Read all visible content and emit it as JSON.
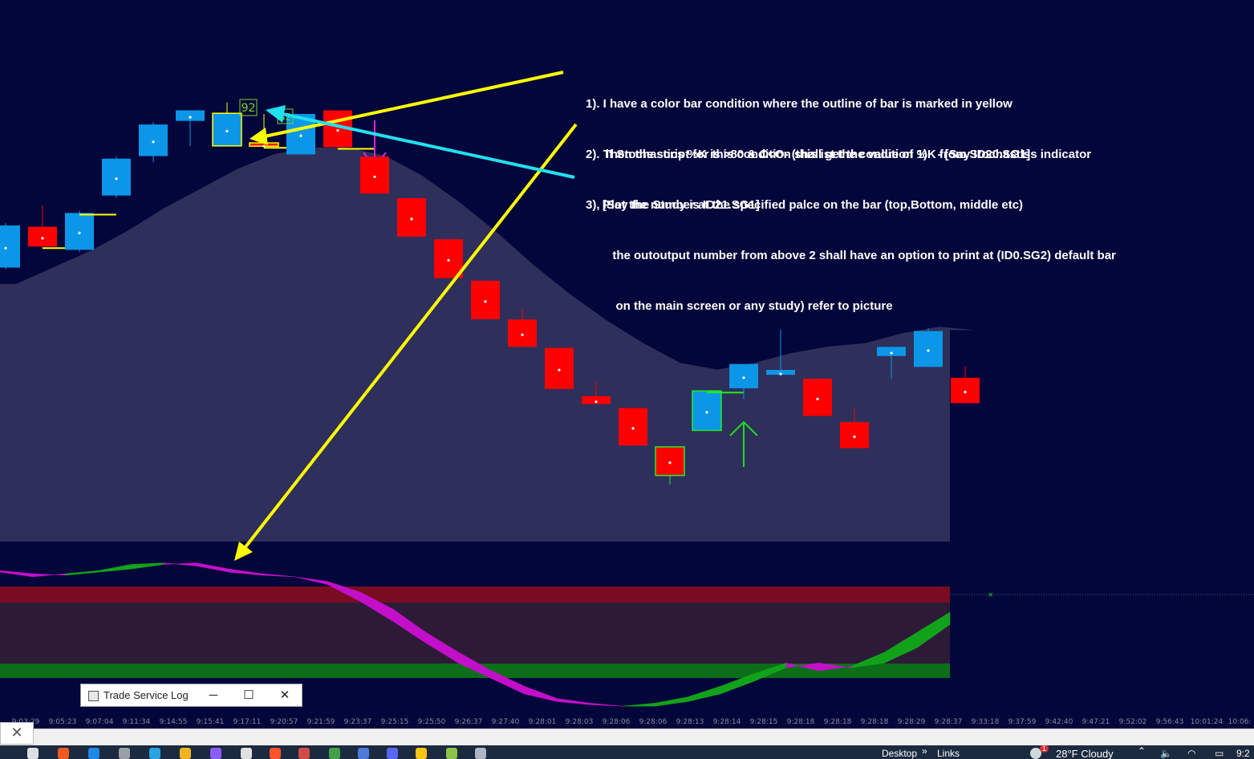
{
  "annotations": [
    {
      "lines": [
        "1). I have a color bar condition where the outline of bar is marked in yellow",
        "      if Stochastics %K is >80 & C<O- (this ist the condition 1)   - [Say ID20.SG1]"
      ]
    },
    {
      "lines": [
        "2). Then the script for this condition shall get the value of %K from Stochastiss indicator",
        "     [Say the Study is ID21.SG1]"
      ]
    },
    {
      "lines": [
        "3), Plot the number at the specified palce on the bar (top,Bottom, middle etc)",
        "        the outoutput number from above 2 shall have an option to print at (ID0.SG2) default bar",
        "         on the main screen or any study) refer to picture"
      ]
    }
  ],
  "chart": {
    "label_92": "92",
    "label_s2": "S2",
    "colors": {
      "up": "#0b96e8",
      "down": "#ff0000",
      "highlight": "#ffff00",
      "green_outline": "#22ee22",
      "area": "#2e2f5a",
      "background": "#03063a"
    },
    "candles": [
      {
        "type": "up",
        "o": 65.0,
        "c": 77.8,
        "h": 78.5,
        "l": 64.5
      },
      {
        "type": "down",
        "o": 77.4,
        "c": 71.4,
        "h": 83.9,
        "l": 70.7,
        "marker": true
      },
      {
        "type": "up",
        "o": 70.4,
        "c": 81.6,
        "h": 82.3,
        "l": 69.7,
        "marker": true
      },
      {
        "type": "up",
        "o": 86.9,
        "c": 98.1,
        "h": 98.8,
        "l": 86.2
      },
      {
        "type": "up",
        "o": 98.9,
        "c": 108.5,
        "h": 109.2,
        "l": 97.0
      },
      {
        "type": "up",
        "o": 109.6,
        "c": 112.8,
        "h": 112.8,
        "l": 101.9
      },
      {
        "type": "up",
        "o": 102.0,
        "c": 111.9,
        "h": 115.2,
        "l": 101.9,
        "outline": "yellow"
      },
      {
        "type": "down",
        "o": 102.9,
        "c": 101.9,
        "h": 111.7,
        "l": 101.5,
        "outline": "yellow",
        "marker": true
      },
      {
        "type": "up",
        "o": 99.4,
        "c": 111.7,
        "h": 111.7,
        "l": 99.4,
        "label": "S2"
      },
      {
        "type": "down",
        "o": 112.8,
        "c": 101.6,
        "h": 112.8,
        "l": 101.4,
        "marker": true,
        "arrow": "down"
      },
      {
        "type": "down",
        "o": 98.7,
        "c": 87.5,
        "h": 98.7,
        "l": 87.5
      },
      {
        "type": "down",
        "o": 86.1,
        "c": 74.4,
        "h": 86.1,
        "l": 74.4
      },
      {
        "type": "down",
        "o": 73.6,
        "c": 61.8,
        "h": 73.6,
        "l": 61.8
      },
      {
        "type": "down",
        "o": 61.0,
        "c": 49.3,
        "h": 61.0,
        "l": 49.3
      },
      {
        "type": "down",
        "o": 49.2,
        "c": 40.9,
        "h": 52.4,
        "l": 40.9
      },
      {
        "type": "down",
        "o": 40.6,
        "c": 28.1,
        "h": 40.6,
        "l": 28.1
      },
      {
        "type": "down",
        "o": 25.9,
        "c": 23.5,
        "h": 30.2,
        "l": 23.5
      },
      {
        "type": "down",
        "o": 22.3,
        "c": 10.9,
        "h": 22.3,
        "l": 10.9
      },
      {
        "type": "down",
        "o": 10.5,
        "c": 1.8,
        "h": 10.5,
        "l": -0.9,
        "outline": "green"
      },
      {
        "type": "up",
        "o": 15.5,
        "c": 27.5,
        "h": 27.5,
        "l": 15.5,
        "outline": "green",
        "marker": true,
        "arrow": "up"
      },
      {
        "type": "up",
        "o": 28.3,
        "c": 35.7,
        "h": 35.7,
        "l": 25.1
      },
      {
        "type": "up",
        "o": 32.4,
        "c": 33.9,
        "h": 46.1,
        "l": 32.4
      },
      {
        "type": "down",
        "o": 31.2,
        "c": 19.9,
        "h": 31.2,
        "l": 19.9
      },
      {
        "type": "down",
        "o": 18.0,
        "c": 10.1,
        "h": 22.3,
        "l": 10.1
      },
      {
        "type": "up",
        "o": 38.1,
        "c": 40.9,
        "h": 40.9,
        "l": 31.2
      },
      {
        "type": "up",
        "o": 34.8,
        "c": 45.7,
        "h": 46.6,
        "l": 34.8
      },
      {
        "type": "down",
        "o": 31.5,
        "c": 23.8,
        "h": 35.1,
        "l": 23.8
      }
    ],
    "area": [
      60,
      65,
      70,
      76,
      83,
      89,
      95,
      99.5,
      101.5,
      101.5,
      99,
      93,
      85,
      76,
      66,
      57,
      49,
      42,
      36,
      34,
      36,
      39,
      41,
      42,
      45,
      47,
      46
    ],
    "stoch_k": [
      89,
      86,
      88,
      90,
      94,
      95,
      93,
      89,
      87,
      86,
      81,
      70,
      57,
      43,
      30,
      20,
      10,
      5,
      3,
      2,
      4,
      8,
      15,
      23,
      30,
      25,
      28,
      37,
      50,
      63
    ],
    "stoch_d": [
      90,
      88,
      87,
      89,
      91,
      94,
      95,
      91,
      88,
      86,
      83,
      76,
      65,
      50,
      37,
      25,
      15,
      7,
      4,
      2,
      2,
      5,
      10,
      18,
      27,
      30,
      27,
      30,
      40,
      55
    ]
  },
  "xaxis_labels": [
    "9:03:29",
    "9:05:23",
    "9:07:04",
    "9:11:34",
    "9:14:55",
    "9:15:41",
    "9:17:11",
    "9:20:57",
    "9:21:59",
    "9:23:37",
    "9:25:15",
    "9:25:50",
    "9:26:37",
    "9:27:40",
    "9:28:01",
    "9:28:03",
    "9:28:06",
    "9:28:06",
    "9:28:13",
    "9:28:14",
    "9:28:15",
    "9:28:18",
    "9:28:18",
    "9:28:18",
    "9:28:29",
    "9:28:37",
    "9:33:18",
    "9:37:59",
    "9:42:40",
    "9:47:21",
    "9:52:02",
    "9:56:43",
    "10:01:24",
    "10:06:"
  ],
  "trade_log": {
    "title": "Trade Service Log",
    "minimize": "─",
    "maximize": "☐",
    "close": "✕"
  },
  "close_tab_glyph": "✕",
  "taskbar": {
    "desktop": "Desktop",
    "chevron": "»",
    "links": "Links",
    "weather": "28°F  Cloudy",
    "clock": "9:2",
    "notify_count": "1"
  }
}
